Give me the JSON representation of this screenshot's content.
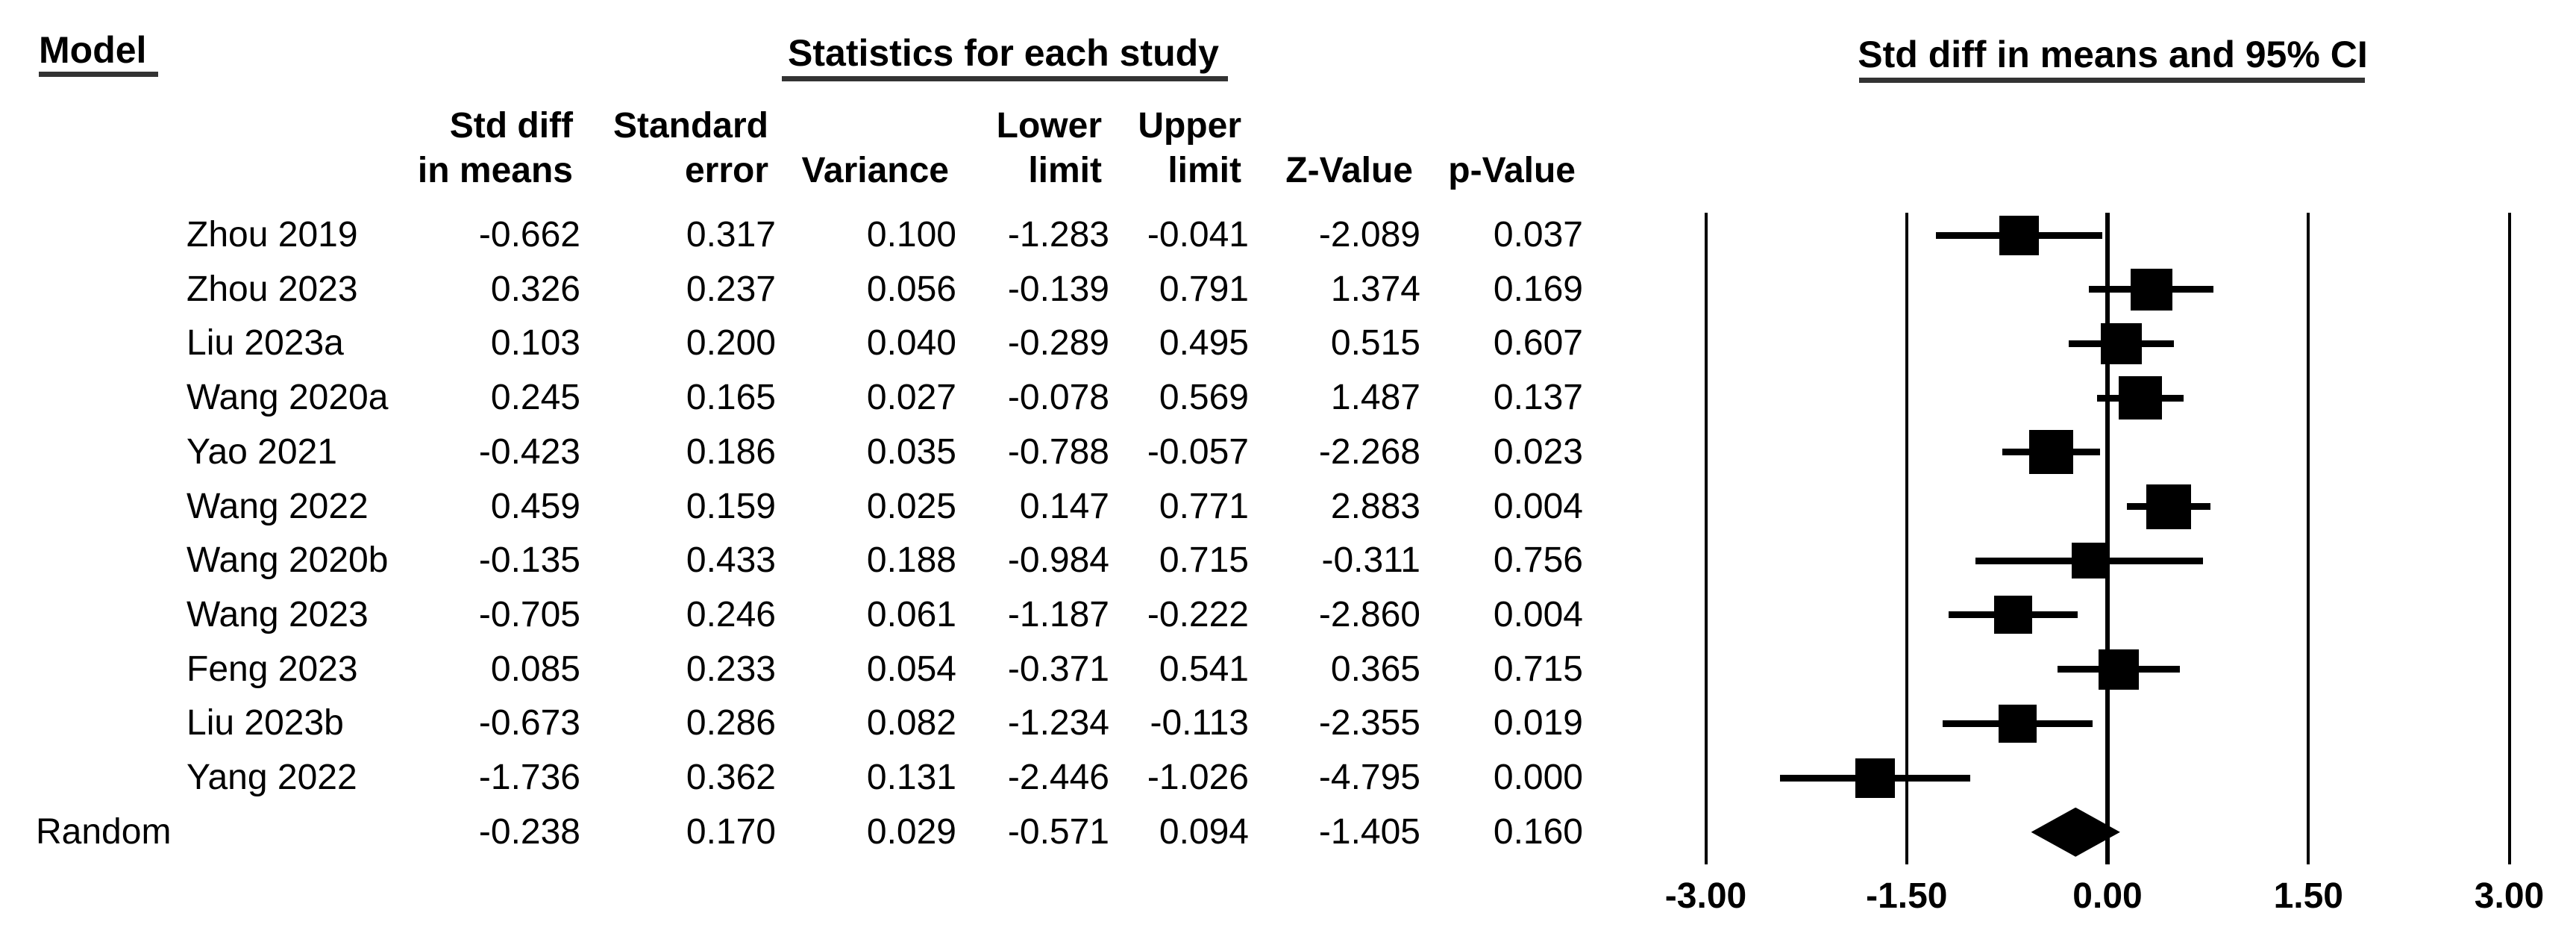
{
  "header": {
    "model": "Model",
    "statistics": "Statistics for each study",
    "ci": "Std diff in means and 95% CI"
  },
  "columns": [
    {
      "line1": "Std diff",
      "line2": "in means"
    },
    {
      "line1": "Standard",
      "line2": "error"
    },
    {
      "line1": "",
      "line2": "Variance"
    },
    {
      "line1": "Lower",
      "line2": "limit"
    },
    {
      "line1": "Upper",
      "line2": "limit"
    },
    {
      "line1": "",
      "line2": "Z-Value"
    },
    {
      "line1": "",
      "line2": "p-Value"
    }
  ],
  "colors": {
    "ink": "#000000",
    "underline": "#333333",
    "background": "#ffffff"
  },
  "chart_data": {
    "type": "forest",
    "effect_measure": "Std diff in means",
    "model_label": "Random",
    "x_axis": {
      "tick_labels": [
        "-3.00",
        "-1.50",
        "0.00",
        "1.50",
        "3.00"
      ],
      "tick_values": [
        -3.0,
        -1.5,
        0.0,
        1.5,
        3.0
      ],
      "range": [
        -3.0,
        3.0
      ],
      "zero_line": 0.0
    },
    "studies": [
      {
        "label": "Zhou 2019",
        "std_diff": "-0.662",
        "standard_error": "0.317",
        "variance": "0.100",
        "lower_limit": "-1.283",
        "upper_limit": "-0.041",
        "z_value": "-2.089",
        "p_value": "0.037",
        "est": -0.662,
        "lo": -1.283,
        "hi": -0.041,
        "marker_px": 53
      },
      {
        "label": "Zhou 2023",
        "std_diff": "0.326",
        "standard_error": "0.237",
        "variance": "0.056",
        "lower_limit": "-0.139",
        "upper_limit": "0.791",
        "z_value": "1.374",
        "p_value": "0.169",
        "est": 0.326,
        "lo": -0.139,
        "hi": 0.791,
        "marker_px": 56
      },
      {
        "label": "Liu 2023a",
        "std_diff": "0.103",
        "standard_error": "0.200",
        "variance": "0.040",
        "lower_limit": "-0.289",
        "upper_limit": "0.495",
        "z_value": "0.515",
        "p_value": "0.607",
        "est": 0.103,
        "lo": -0.289,
        "hi": 0.495,
        "marker_px": 55
      },
      {
        "label": "Wang 2020a",
        "std_diff": "0.245",
        "standard_error": "0.165",
        "variance": "0.027",
        "lower_limit": "-0.078",
        "upper_limit": "0.569",
        "z_value": "1.487",
        "p_value": "0.137",
        "est": 0.245,
        "lo": -0.078,
        "hi": 0.569,
        "marker_px": 58
      },
      {
        "label": "Yao 2021",
        "std_diff": "-0.423",
        "standard_error": "0.186",
        "variance": "0.035",
        "lower_limit": "-0.788",
        "upper_limit": "-0.057",
        "z_value": "-2.268",
        "p_value": "0.023",
        "est": -0.423,
        "lo": -0.788,
        "hi": -0.057,
        "marker_px": 59
      },
      {
        "label": "Wang 2022",
        "std_diff": "0.459",
        "standard_error": "0.159",
        "variance": "0.025",
        "lower_limit": "0.147",
        "upper_limit": "0.771",
        "z_value": "2.883",
        "p_value": "0.004",
        "est": 0.459,
        "lo": 0.147,
        "hi": 0.771,
        "marker_px": 60
      },
      {
        "label": "Wang 2020b",
        "std_diff": "-0.135",
        "standard_error": "0.433",
        "variance": "0.188",
        "lower_limit": "-0.984",
        "upper_limit": "0.715",
        "z_value": "-0.311",
        "p_value": "0.756",
        "est": -0.135,
        "lo": -0.984,
        "hi": 0.715,
        "marker_px": 48
      },
      {
        "label": "Wang 2023",
        "std_diff": "-0.705",
        "standard_error": "0.246",
        "variance": "0.061",
        "lower_limit": "-1.187",
        "upper_limit": "-0.222",
        "z_value": "-2.860",
        "p_value": "0.004",
        "est": -0.705,
        "lo": -1.187,
        "hi": -0.222,
        "marker_px": 51
      },
      {
        "label": "Feng 2023",
        "std_diff": "0.085",
        "standard_error": "0.233",
        "variance": "0.054",
        "lower_limit": "-0.371",
        "upper_limit": "0.541",
        "z_value": "0.365",
        "p_value": "0.715",
        "est": 0.085,
        "lo": -0.371,
        "hi": 0.541,
        "marker_px": 54
      },
      {
        "label": "Liu 2023b",
        "std_diff": "-0.673",
        "standard_error": "0.286",
        "variance": "0.082",
        "lower_limit": "-1.234",
        "upper_limit": "-0.113",
        "z_value": "-2.355",
        "p_value": "0.019",
        "est": -0.673,
        "lo": -1.234,
        "hi": -0.113,
        "marker_px": 51
      },
      {
        "label": "Yang 2022",
        "std_diff": "-1.736",
        "standard_error": "0.362",
        "variance": "0.131",
        "lower_limit": "-2.446",
        "upper_limit": "-1.026",
        "z_value": "-4.795",
        "p_value": "0.000",
        "est": -1.736,
        "lo": -2.446,
        "hi": -1.026,
        "marker_px": 53
      }
    ],
    "summary": {
      "label": "Random",
      "std_diff": "-0.238",
      "standard_error": "0.170",
      "variance": "0.029",
      "lower_limit": "-0.571",
      "upper_limit": "0.094",
      "z_value": "-1.405",
      "p_value": "0.160",
      "est": -0.238,
      "lo": -0.571,
      "hi": 0.094
    }
  }
}
